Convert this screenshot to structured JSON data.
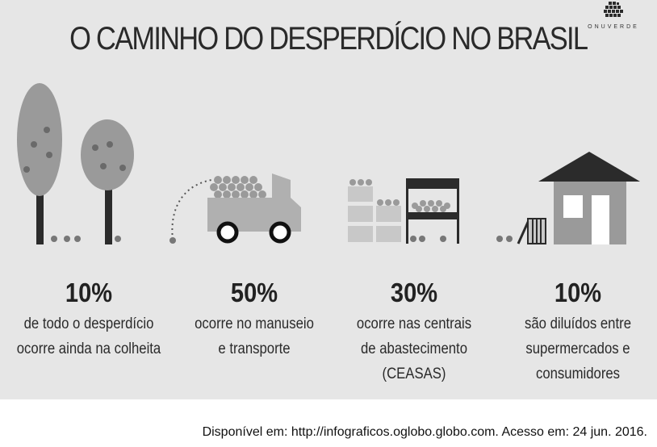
{
  "title": "O CAMINHO DO DESPERDÍCIO NO BRASIL",
  "brand": {
    "name": "ONUVERDE",
    "icon": "brand-logo-icon"
  },
  "stats": [
    {
      "percent": "10%",
      "description": "de todo o desperdício\nocorre ainda na colheita",
      "icon": "trees-icon"
    },
    {
      "percent": "50%",
      "description": "ocorre no manuseio\ne transporte",
      "icon": "truck-icon"
    },
    {
      "percent": "30%",
      "description": "ocorre nas centrais\nde abastecimento\n(CEASAS)",
      "icon": "market-stall-icon"
    },
    {
      "percent": "10%",
      "description": "são diluídos entre\nsupermercados e\nconsumidores",
      "icon": "house-icon"
    }
  ],
  "source": "Disponível em: http://infograficos.oglobo.globo.com. Acesso em: 24 jun. 2016.",
  "colors": {
    "panel": "#e6e6e6",
    "dark": "#2b2b2b",
    "mid": "#9a9a9a",
    "light": "#c8c8c8"
  }
}
